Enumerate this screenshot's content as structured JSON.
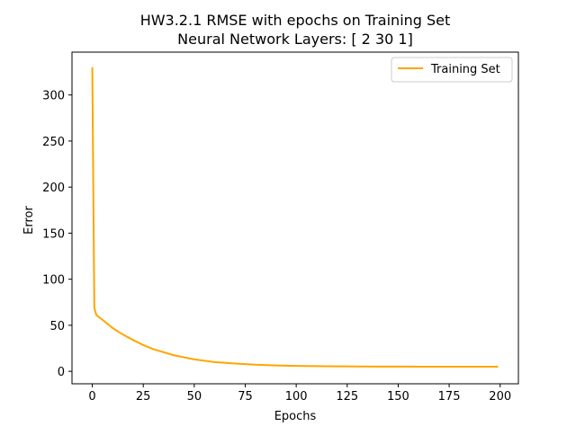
{
  "chart_data": {
    "type": "line",
    "title": "HW3.2.1 RMSE with epochs on Training Set",
    "subtitle": "Neural Network Layers: [ 2 30  1]",
    "xlabel": "Epochs",
    "ylabel": "Error",
    "xlim": [
      -9.95,
      208.95
    ],
    "ylim": [
      -13.5,
      346.5
    ],
    "x_ticks": [
      0,
      25,
      50,
      75,
      100,
      125,
      150,
      175,
      200
    ],
    "y_ticks": [
      0,
      50,
      100,
      150,
      200,
      250,
      300
    ],
    "grid": false,
    "legend_position": "upper-right",
    "series": [
      {
        "name": "Training Set",
        "color": "#ffa500",
        "x": [
          0,
          1,
          2,
          5,
          10,
          15,
          20,
          25,
          30,
          40,
          50,
          60,
          70,
          80,
          90,
          100,
          110,
          120,
          130,
          140,
          150,
          160,
          170,
          180,
          190,
          199
        ],
        "y": [
          330,
          69,
          61,
          56,
          47,
          40,
          34,
          28.5,
          24,
          17.5,
          13,
          10,
          8.5,
          7.2,
          6.4,
          5.9,
          5.6,
          5.4,
          5.3,
          5.2,
          5.15,
          5.1,
          5.1,
          5.1,
          5.1,
          5.1
        ]
      }
    ]
  }
}
